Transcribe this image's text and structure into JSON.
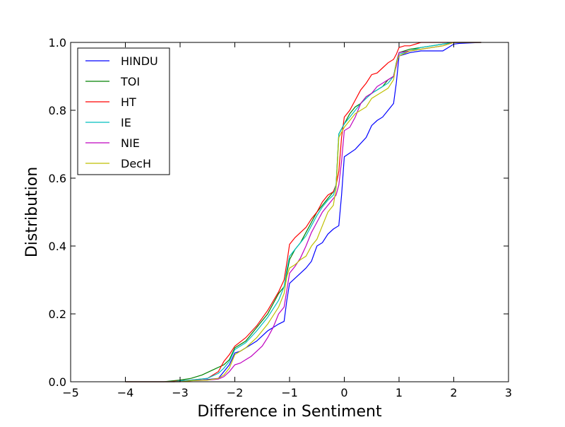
{
  "chart_data": {
    "type": "line",
    "title": "",
    "xlabel": "Difference in Sentiment",
    "ylabel": "Distribution",
    "xlim": [
      -5,
      3
    ],
    "ylim": [
      0.0,
      1.0
    ],
    "x_ticks": [
      -5,
      -4,
      -3,
      -2,
      -1,
      0,
      1,
      2,
      3
    ],
    "x_tick_labels": [
      "−5",
      "−4",
      "−3",
      "−2",
      "−1",
      "0",
      "1",
      "2",
      "3"
    ],
    "y_ticks": [
      0.0,
      0.2,
      0.4,
      0.6,
      0.8,
      1.0
    ],
    "y_tick_labels": [
      "0.0",
      "0.2",
      "0.4",
      "0.6",
      "0.8",
      "1.0"
    ],
    "grid": false,
    "legend_position": "top-left",
    "series": [
      {
        "name": "HINDU",
        "color": "#0000ff",
        "x": [
          -4,
          -3.1,
          -3.0,
          -2.6,
          -2.3,
          -2.2,
          -2.1,
          -2.0,
          -1.9,
          -1.8,
          -1.7,
          -1.6,
          -1.5,
          -1.4,
          -1.3,
          -1.2,
          -1.1,
          -1.05,
          -1.0,
          -0.9,
          -0.8,
          -0.7,
          -0.6,
          -0.5,
          -0.4,
          -0.3,
          -0.2,
          -0.1,
          -0.05,
          0.0,
          0.2,
          0.4,
          0.5,
          0.6,
          0.7,
          0.8,
          0.9,
          0.95,
          1.0,
          1.2,
          1.4,
          1.6,
          1.8,
          1.9,
          2.0,
          2.1,
          2.5
        ],
        "y": [
          0.0,
          0.0,
          0.003,
          0.005,
          0.01,
          0.03,
          0.05,
          0.085,
          0.09,
          0.1,
          0.11,
          0.12,
          0.135,
          0.15,
          0.16,
          0.17,
          0.178,
          0.24,
          0.29,
          0.305,
          0.32,
          0.335,
          0.355,
          0.4,
          0.41,
          0.435,
          0.45,
          0.46,
          0.55,
          0.663,
          0.685,
          0.72,
          0.755,
          0.77,
          0.78,
          0.8,
          0.82,
          0.88,
          0.96,
          0.97,
          0.975,
          0.975,
          0.975,
          0.985,
          0.995,
          0.997,
          1.0
        ]
      },
      {
        "name": "TOI",
        "color": "#008000",
        "x": [
          -4,
          -3.3,
          -3.0,
          -2.8,
          -2.6,
          -2.4,
          -2.2,
          -2.1,
          -2.0,
          -1.8,
          -1.6,
          -1.4,
          -1.2,
          -1.1,
          -1.05,
          -1.0,
          -0.9,
          -0.8,
          -0.7,
          -0.6,
          -0.5,
          -0.4,
          -0.3,
          -0.2,
          -0.15,
          -0.1,
          0.0,
          0.1,
          0.2,
          0.3,
          0.4,
          0.5,
          0.6,
          0.7,
          0.8,
          0.9,
          0.95,
          1.0,
          1.2,
          1.4,
          1.6,
          1.8,
          2.0,
          2.2,
          2.5
        ],
        "y": [
          0.0,
          0.0,
          0.005,
          0.01,
          0.02,
          0.035,
          0.05,
          0.065,
          0.1,
          0.12,
          0.16,
          0.2,
          0.26,
          0.28,
          0.32,
          0.36,
          0.39,
          0.41,
          0.44,
          0.47,
          0.5,
          0.52,
          0.54,
          0.56,
          0.58,
          0.73,
          0.76,
          0.79,
          0.81,
          0.82,
          0.84,
          0.85,
          0.86,
          0.87,
          0.89,
          0.9,
          0.94,
          0.97,
          0.98,
          0.985,
          0.99,
          0.995,
          1.0,
          1.0,
          1.0
        ]
      },
      {
        "name": "HT",
        "color": "#ff0000",
        "x": [
          -4,
          -3.2,
          -3.0,
          -2.8,
          -2.5,
          -2.3,
          -2.2,
          -2.1,
          -2.0,
          -1.8,
          -1.6,
          -1.4,
          -1.2,
          -1.1,
          -1.05,
          -1.0,
          -0.9,
          -0.8,
          -0.7,
          -0.6,
          -0.5,
          -0.4,
          -0.3,
          -0.2,
          -0.15,
          -0.1,
          -0.05,
          0.0,
          0.1,
          0.2,
          0.3,
          0.4,
          0.5,
          0.6,
          0.7,
          0.8,
          0.9,
          0.95,
          1.0,
          1.1,
          1.2,
          1.4,
          1.6,
          1.8,
          2.0,
          2.5
        ],
        "y": [
          0.0,
          0.0,
          0.003,
          0.005,
          0.01,
          0.03,
          0.06,
          0.08,
          0.105,
          0.13,
          0.165,
          0.21,
          0.265,
          0.3,
          0.35,
          0.405,
          0.425,
          0.44,
          0.455,
          0.48,
          0.5,
          0.53,
          0.55,
          0.56,
          0.58,
          0.62,
          0.72,
          0.78,
          0.8,
          0.83,
          0.86,
          0.88,
          0.905,
          0.91,
          0.925,
          0.94,
          0.95,
          0.965,
          0.985,
          0.99,
          0.99,
          1.0,
          1.0,
          1.0,
          1.0,
          1.0
        ]
      },
      {
        "name": "IE",
        "color": "#00bfbf",
        "x": [
          -4,
          -3.1,
          -3.0,
          -2.8,
          -2.5,
          -2.3,
          -2.2,
          -2.1,
          -2.0,
          -1.8,
          -1.6,
          -1.4,
          -1.2,
          -1.1,
          -1.05,
          -1.0,
          -0.9,
          -0.8,
          -0.7,
          -0.6,
          -0.5,
          -0.4,
          -0.3,
          -0.2,
          -0.15,
          -0.1,
          0.0,
          0.1,
          0.2,
          0.3,
          0.4,
          0.5,
          0.6,
          0.7,
          0.8,
          0.9,
          0.95,
          1.0,
          1.2,
          1.4,
          1.6,
          1.8,
          2.0,
          2.5
        ],
        "y": [
          0.0,
          0.0,
          0.003,
          0.005,
          0.01,
          0.025,
          0.04,
          0.06,
          0.095,
          0.115,
          0.15,
          0.19,
          0.24,
          0.28,
          0.33,
          0.37,
          0.39,
          0.41,
          0.43,
          0.46,
          0.49,
          0.515,
          0.535,
          0.55,
          0.58,
          0.73,
          0.76,
          0.78,
          0.8,
          0.82,
          0.835,
          0.85,
          0.86,
          0.87,
          0.88,
          0.9,
          0.94,
          0.965,
          0.975,
          0.985,
          0.99,
          0.995,
          1.0,
          1.0
        ]
      },
      {
        "name": "NIE",
        "color": "#bf00bf",
        "x": [
          -4,
          -3.0,
          -2.8,
          -2.5,
          -2.3,
          -2.2,
          -2.1,
          -2.0,
          -1.9,
          -1.8,
          -1.7,
          -1.6,
          -1.5,
          -1.4,
          -1.3,
          -1.2,
          -1.1,
          -1.0,
          -0.9,
          -0.8,
          -0.7,
          -0.6,
          -0.5,
          -0.4,
          -0.3,
          -0.2,
          -0.15,
          -0.1,
          -0.05,
          0.0,
          0.1,
          0.2,
          0.3,
          0.4,
          0.5,
          0.6,
          0.7,
          0.8,
          0.9,
          0.95,
          1.0,
          1.2,
          1.4,
          1.6,
          1.8,
          2.0,
          2.5
        ],
        "y": [
          0.0,
          0.0,
          0.003,
          0.005,
          0.008,
          0.015,
          0.03,
          0.05,
          0.055,
          0.065,
          0.075,
          0.09,
          0.105,
          0.13,
          0.16,
          0.2,
          0.22,
          0.32,
          0.34,
          0.365,
          0.4,
          0.44,
          0.47,
          0.5,
          0.52,
          0.54,
          0.55,
          0.58,
          0.65,
          0.74,
          0.75,
          0.78,
          0.82,
          0.84,
          0.85,
          0.87,
          0.88,
          0.89,
          0.9,
          0.93,
          0.97,
          0.975,
          0.98,
          0.985,
          0.99,
          1.0,
          1.0
        ]
      },
      {
        "name": "DecH",
        "color": "#bfbf00",
        "x": [
          -4,
          -3.0,
          -2.8,
          -2.5,
          -2.3,
          -2.2,
          -2.1,
          -2.0,
          -1.8,
          -1.6,
          -1.4,
          -1.2,
          -1.1,
          -1.05,
          -1.0,
          -0.9,
          -0.8,
          -0.7,
          -0.6,
          -0.5,
          -0.4,
          -0.3,
          -0.2,
          -0.15,
          -0.1,
          0.0,
          0.1,
          0.2,
          0.3,
          0.4,
          0.5,
          0.6,
          0.7,
          0.8,
          0.9,
          0.95,
          1.0,
          1.2,
          1.4,
          1.6,
          1.8,
          2.0,
          2.5
        ],
        "y": [
          0.0,
          0.0,
          0.003,
          0.005,
          0.01,
          0.02,
          0.04,
          0.08,
          0.1,
          0.13,
          0.17,
          0.22,
          0.26,
          0.31,
          0.335,
          0.345,
          0.36,
          0.37,
          0.4,
          0.42,
          0.46,
          0.5,
          0.52,
          0.57,
          0.72,
          0.75,
          0.77,
          0.79,
          0.8,
          0.81,
          0.835,
          0.845,
          0.855,
          0.865,
          0.89,
          0.94,
          0.96,
          0.975,
          0.98,
          0.985,
          0.99,
          1.0,
          1.0
        ]
      }
    ]
  }
}
